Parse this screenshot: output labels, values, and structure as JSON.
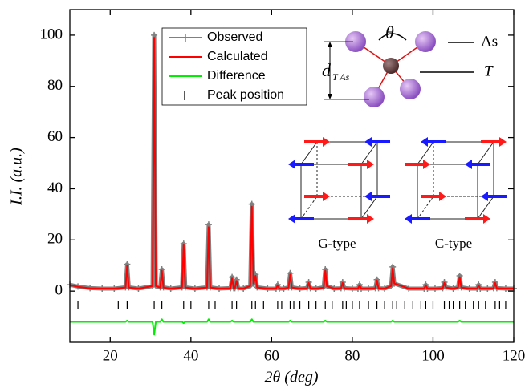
{
  "chart_data": {
    "type": "line",
    "x_label": "2θ (deg)",
    "y_label": "I.I. (a.u.)",
    "xlim": [
      10,
      120
    ],
    "ylim": [
      -20,
      110
    ],
    "xticks": [
      20,
      40,
      60,
      80,
      100,
      120
    ],
    "yticks": [
      0,
      20,
      40,
      60,
      80,
      100
    ],
    "legend": "top-center",
    "x": [
      10,
      12,
      15,
      18,
      21,
      23.8,
      24.2,
      24.6,
      27,
      30.5,
      30.9,
      31.3,
      32.4,
      32.8,
      33.2,
      35,
      37.8,
      38.2,
      38.6,
      41,
      44.0,
      44.4,
      44.8,
      47,
      49.8,
      50.2,
      50.6,
      50.9,
      51.3,
      51.7,
      53,
      54.7,
      55.1,
      55.5,
      55.6,
      56.0,
      56.4,
      59,
      61.1,
      61.5,
      61.9,
      63,
      64.2,
      64.6,
      65.0,
      67,
      68.8,
      69.2,
      69.6,
      71,
      72.9,
      73.3,
      73.7,
      75.5,
      77.2,
      77.6,
      78.0,
      80,
      81.4,
      81.8,
      82.2,
      84,
      85.7,
      86.1,
      86.5,
      88,
      89.6,
      90.0,
      90.4,
      94,
      97.8,
      98.2,
      98.6,
      100.5,
      102.4,
      102.8,
      103.2,
      105,
      106.2,
      106.6,
      107.0,
      109,
      110.9,
      111.3,
      111.7,
      113.5,
      115.0,
      115.4,
      115.8,
      118,
      120
    ],
    "series": [
      {
        "name": "Observed",
        "color": "#808080",
        "marker": "+",
        "values": [
          2.5,
          1.8,
          1.2,
          1,
          1,
          1.5,
          10.5,
          1.5,
          1,
          2,
          100,
          2,
          1.5,
          8.5,
          1.5,
          1,
          1.5,
          18.5,
          1.5,
          1,
          1.5,
          26,
          1.5,
          1,
          1.2,
          5.5,
          1.2,
          1.2,
          4.5,
          1.2,
          1,
          2,
          34,
          3,
          3,
          6.5,
          1.5,
          1,
          1,
          2.5,
          1,
          1,
          1.5,
          7,
          1.5,
          1,
          1.2,
          3.5,
          1.2,
          1,
          1.5,
          8.5,
          2,
          1,
          1.2,
          3.5,
          1.2,
          1,
          1,
          2.5,
          1,
          1,
          1.2,
          4.5,
          1.2,
          1,
          2,
          9.5,
          3,
          1,
          1,
          2.5,
          1,
          1,
          1.2,
          3.5,
          1.5,
          1,
          1.5,
          6,
          1.5,
          1,
          1,
          2.5,
          1,
          1,
          1.2,
          3.5,
          1.2,
          1,
          1
        ]
      },
      {
        "name": "Calculated",
        "color": "#ff0000",
        "values": [
          2.4,
          1.7,
          1.1,
          1,
          1,
          1.4,
          10,
          1.4,
          1,
          2,
          99,
          2,
          1.4,
          8,
          1.4,
          1,
          1.4,
          18,
          1.4,
          1,
          1.4,
          25,
          1.4,
          1,
          1.1,
          5,
          1.1,
          1.1,
          4,
          1.1,
          1,
          2,
          33,
          3,
          3,
          6,
          1.4,
          1,
          1,
          2.3,
          1,
          1,
          1.4,
          6.5,
          1.4,
          1,
          1.1,
          3.2,
          1.1,
          1,
          1.4,
          8,
          1.9,
          1,
          1.1,
          3.2,
          1.1,
          1,
          1,
          2.3,
          1,
          1,
          1.1,
          4.2,
          1.1,
          1,
          2,
          9,
          3,
          1,
          1,
          2.3,
          1,
          1,
          1.1,
          3.2,
          1.4,
          1,
          1.4,
          5.5,
          1.4,
          1,
          1,
          2.3,
          1,
          1,
          1.1,
          3.2,
          1.1,
          1,
          1
        ]
      },
      {
        "name": "Difference",
        "color": "#00ee00",
        "values": [
          -12,
          -12,
          -12,
          -12,
          -12,
          -12,
          -11.5,
          -12,
          -12,
          -12,
          -17,
          -12,
          -12,
          -11,
          -12,
          -12,
          -12,
          -12.5,
          -12,
          -12,
          -12,
          -11,
          -12,
          -12,
          -12,
          -11.5,
          -12,
          -12,
          -12,
          -12,
          -12,
          -12,
          -11,
          -12,
          -12,
          -12,
          -12,
          -12,
          -12,
          -12,
          -12,
          -12,
          -12,
          -11.5,
          -12,
          -12,
          -12,
          -12,
          -12,
          -12,
          -12,
          -11.5,
          -12,
          -12,
          -12,
          -12,
          -12,
          -12,
          -12,
          -12,
          -12,
          -12,
          -12,
          -12,
          -12,
          -12,
          -12,
          -11.5,
          -12,
          -12,
          -12,
          -12,
          -12,
          -12,
          -12,
          -12,
          -12,
          -12,
          -12,
          -11.5,
          -12,
          -12,
          -12,
          -12,
          -12,
          -12,
          -12,
          -12,
          -12,
          -12,
          -12
        ]
      },
      {
        "name": "Peak position",
        "color": "#000000",
        "marker": "|",
        "x": [
          12,
          22,
          24.2,
          30.9,
          32.8,
          38.2,
          40,
          44.4,
          46,
          50.2,
          51.3,
          55.1,
          56,
          58,
          61.5,
          62.5,
          64.6,
          65.5,
          67,
          69.2,
          71,
          73.3,
          75,
          77.6,
          78.5,
          80,
          81.8,
          84,
          86.1,
          88,
          90,
          91,
          93,
          95,
          97,
          98.2,
          100,
          102.8,
          104,
          105,
          106.6,
          108,
          110,
          111.3,
          113,
          115.4,
          116.5,
          118
        ],
        "values": [
          -5.5,
          -5.5,
          -5.5,
          -5.5,
          -5.5,
          -5.5,
          -5.5,
          -5.5,
          -5.5,
          -5.5,
          -5.5,
          -5.5,
          -5.5,
          -5.5,
          -5.5,
          -5.5,
          -5.5,
          -5.5,
          -5.5,
          -5.5,
          -5.5,
          -5.5,
          -5.5,
          -5.5,
          -5.5,
          -5.5,
          -5.5,
          -5.5,
          -5.5,
          -5.5,
          -5.5,
          -5.5,
          -5.5,
          -5.5,
          -5.5,
          -5.5,
          -5.5,
          -5.5,
          -5.5,
          -5.5,
          -5.5,
          -5.5,
          -5.5,
          -5.5,
          -5.5,
          -5.5,
          -5.5,
          -5.5
        ]
      }
    ],
    "annotations": {
      "angle": "θ",
      "as_label": "As",
      "t_label": "T",
      "distance_label": "d",
      "distance_subscript": "T As",
      "g_type": "G-type",
      "c_type": "C-type"
    }
  }
}
